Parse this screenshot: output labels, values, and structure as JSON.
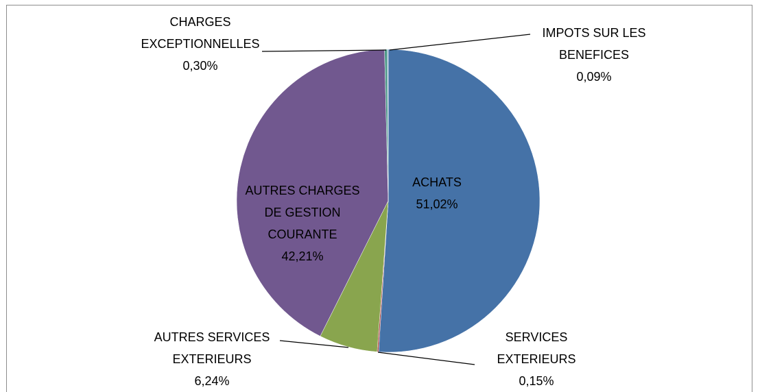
{
  "chart_data": {
    "type": "pie",
    "categories": [
      "ACHATS",
      "SERVICES EXTERIEURS",
      "AUTRES SERVICES EXTERIEURS",
      "AUTRES CHARGES DE GESTION COURANTE",
      "CHARGES EXCEPTIONNELLES",
      "IMPOTS SUR LES BENEFICES"
    ],
    "values": [
      51.02,
      0.15,
      6.24,
      42.21,
      0.3,
      0.09
    ],
    "value_labels": [
      "51,02%",
      "0,15%",
      "6,24%",
      "42,21%",
      "0,30%",
      "0,09%"
    ],
    "colors": [
      "#4572a7",
      "#aa4643",
      "#89a54e",
      "#71588f",
      "#4f9a8a",
      "#8fb2d9"
    ]
  }
}
